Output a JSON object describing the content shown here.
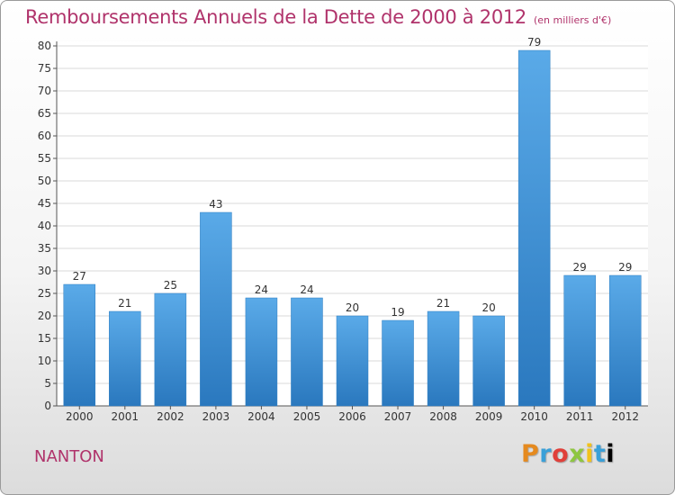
{
  "chart_data": {
    "type": "bar",
    "title": "Remboursements Annuels de la Dette de 2000 à 2012",
    "subtitle": "(en milliers d'€)",
    "xlabel": "",
    "ylabel": "",
    "categories": [
      "2000",
      "2001",
      "2002",
      "2003",
      "2004",
      "2005",
      "2006",
      "2007",
      "2008",
      "2009",
      "2010",
      "2011",
      "2012"
    ],
    "values": [
      27,
      21,
      25,
      43,
      24,
      24,
      20,
      19,
      21,
      20,
      79,
      29,
      29
    ],
    "ylim": [
      0,
      80
    ],
    "yticks": [
      0,
      5,
      10,
      15,
      20,
      25,
      30,
      35,
      40,
      45,
      50,
      55,
      60,
      65,
      70,
      75,
      80
    ],
    "grid": true,
    "bar_color": "#3a8fd4",
    "bar_color_light": "#5aaae8",
    "bar_color_dark": "#2a78be"
  },
  "footer": {
    "town": "NANTON",
    "logo_letters": [
      "P",
      "r",
      "o",
      "x",
      "i",
      "t",
      "i"
    ]
  }
}
